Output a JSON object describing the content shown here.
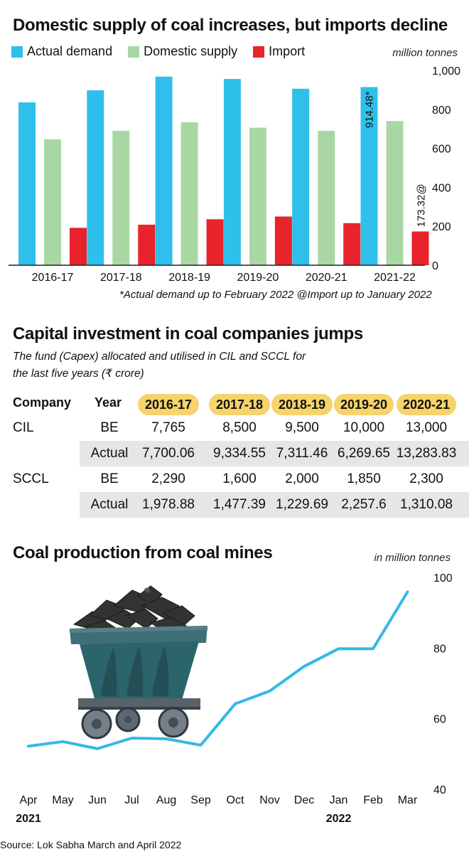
{
  "section1": {
    "title": "Domestic supply of coal increases, but imports decline",
    "unit": "million tonnes",
    "legend": [
      {
        "label": "Actual demand",
        "color": "#2ec0ea"
      },
      {
        "label": "Domestic supply",
        "color": "#a9d7a4"
      },
      {
        "label": "Import",
        "color": "#e8232b"
      }
    ],
    "footnote": "*Actual demand up to February 2022  @Import up to January 2022"
  },
  "section2": {
    "title": "Capital investment in coal companies jumps",
    "subtitle": "The fund (Capex) allocated and utilised in CIL and SCCL for the last five years  (₹ crore)",
    "headers": {
      "company": "Company",
      "year": "Year",
      "years": [
        "2016-17",
        "2017-18",
        "2018-19",
        "2019-20",
        "2020-21"
      ]
    },
    "rows": [
      {
        "company": "CIL",
        "type": "BE",
        "values": [
          "7,765",
          "8,500",
          "9,500",
          "10,000",
          "13,000"
        ]
      },
      {
        "company": "",
        "type": "Actual",
        "values": [
          "7,700.06",
          "9,334.55",
          "7,311.46",
          "6,269.65",
          "13,283.83"
        ]
      },
      {
        "company": "SCCL",
        "type": "BE",
        "values": [
          "2,290",
          "1,600",
          "2,000",
          "1,850",
          "2,300"
        ]
      },
      {
        "company": "",
        "type": "Actual",
        "values": [
          "1,978.88",
          "1,477.39",
          "1,229.69",
          "2,257.6",
          "1,310.08"
        ]
      }
    ]
  },
  "section3": {
    "title": "Coal production from coal mines",
    "unit": "in million tonnes",
    "line_color": "#34b8e8"
  },
  "source": "Source: Lok Sabha March and April 2022",
  "chart_data": [
    {
      "type": "bar",
      "title": "Domestic supply of coal increases, but imports decline",
      "categories": [
        "2016-17",
        "2017-18",
        "2018-19",
        "2019-20",
        "2020-21",
        "2021-22"
      ],
      "series": [
        {
          "name": "Actual demand",
          "values": [
            836,
            898,
            968,
            956,
            906,
            914.48
          ]
        },
        {
          "name": "Domestic supply",
          "values": [
            646,
            690,
            734,
            706,
            690,
            740
          ]
        },
        {
          "name": "Import",
          "values": [
            192,
            208,
            236,
            250,
            216,
            173.32
          ]
        }
      ],
      "data_labels": [
        {
          "series": "Actual demand",
          "category": "2021-22",
          "text": "914.48*"
        },
        {
          "series": "Import",
          "category": "2021-22",
          "text": "173.32@"
        }
      ],
      "yticks": [
        "0",
        "200",
        "400",
        "600",
        "800",
        "1,000"
      ],
      "ylim": [
        0,
        1000
      ],
      "ylabel": "million tonnes",
      "legend": "top-left",
      "grid": false
    },
    {
      "type": "line",
      "title": "Coal production from coal mines",
      "x": [
        "Apr",
        "May",
        "Jun",
        "Jul",
        "Aug",
        "Sep",
        "Oct",
        "Nov",
        "Dec",
        "Jan",
        "Feb",
        "Mar"
      ],
      "year_labels": [
        {
          "at": "Apr",
          "text": "2021"
        },
        {
          "at": "Jan",
          "text": "2022"
        }
      ],
      "series": [
        {
          "values": [
            52.2,
            53.5,
            51.5,
            54.5,
            54.3,
            52.5,
            64.2,
            67.8,
            74.8,
            79.8,
            79.8,
            95.9
          ]
        }
      ],
      "yticks": [
        "40",
        "60",
        "80",
        "100"
      ],
      "ylim": [
        40,
        100
      ],
      "ylabel": "in million tonnes",
      "grid": false
    }
  ]
}
